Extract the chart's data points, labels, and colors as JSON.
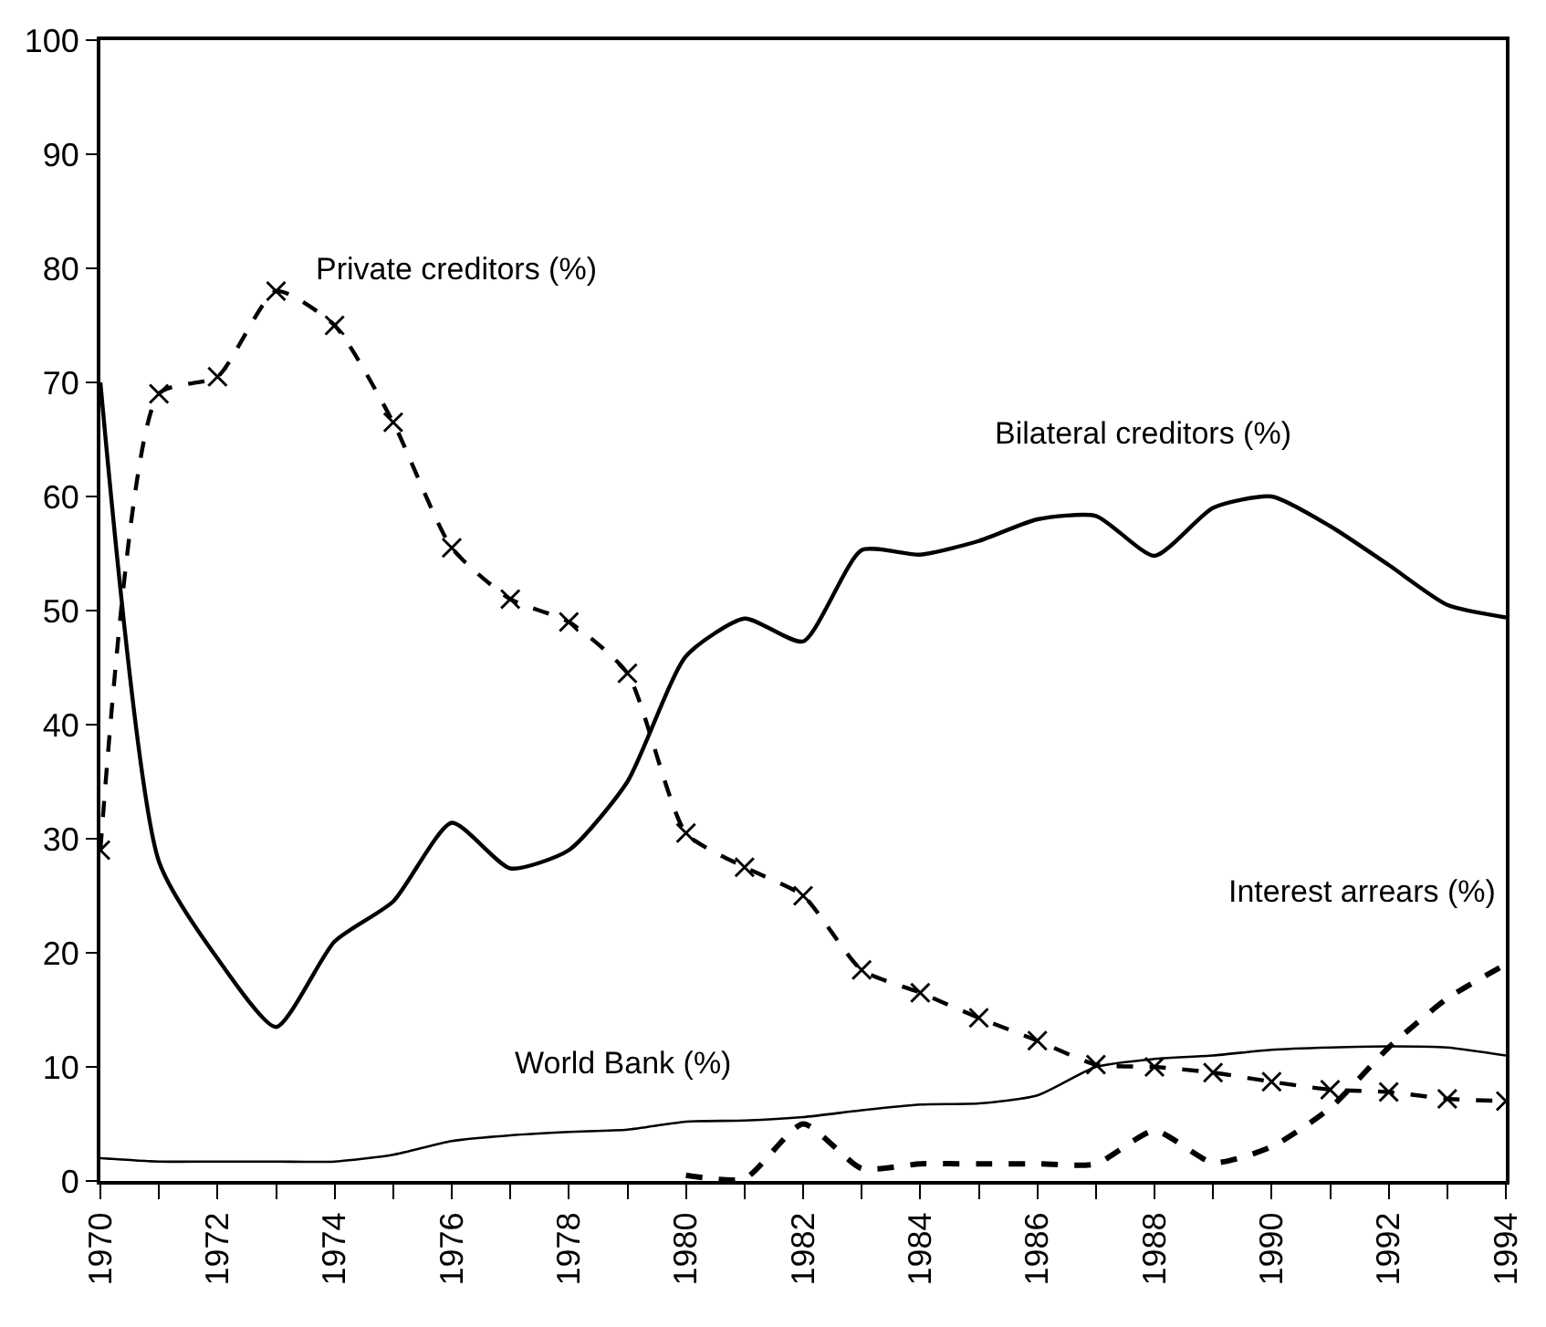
{
  "chart_data": {
    "type": "line",
    "x": [
      1970,
      1971,
      1972,
      1973,
      1974,
      1975,
      1976,
      1977,
      1978,
      1979,
      1980,
      1981,
      1982,
      1983,
      1984,
      1985,
      1986,
      1987,
      1988,
      1989,
      1990,
      1991,
      1992,
      1993,
      1994
    ],
    "series": [
      {
        "name": "Private creditors (%)",
        "color": "#000000",
        "line_style": "dashed",
        "marker": "cross",
        "values": [
          29,
          69,
          70.5,
          78,
          75,
          66.5,
          55.5,
          51,
          49,
          44.5,
          30.5,
          27.5,
          25,
          18.5,
          16.5,
          14.3,
          12.3,
          10.2,
          10,
          9.5,
          8.7,
          8,
          7.8,
          7.2,
          7
        ]
      },
      {
        "name": "Bilateral creditors (%)",
        "color": "#000000",
        "line_style": "solid",
        "marker": "none",
        "values": [
          70,
          28,
          19.5,
          13.5,
          21,
          24.5,
          31.4,
          27.4,
          29,
          35,
          46,
          49.3,
          47.3,
          55.3,
          54.9,
          56.1,
          58,
          58.3,
          54.8,
          59,
          60,
          57.4,
          54,
          50.5,
          49.4
        ]
      },
      {
        "name": "World Bank (%)",
        "color": "#000000",
        "line_style": "solid",
        "marker": "none",
        "values": [
          2,
          1.7,
          1.7,
          1.7,
          1.7,
          2.3,
          3.5,
          4,
          4.3,
          4.5,
          5.2,
          5.3,
          5.6,
          6.2,
          6.7,
          6.8,
          7.5,
          10,
          10.7,
          11,
          11.5,
          11.7,
          11.8,
          11.7,
          11
        ]
      },
      {
        "name": "Interest arrears (%)",
        "color": "#000000",
        "line_style": "dashed",
        "marker": "none",
        "values": [
          null,
          null,
          null,
          null,
          null,
          null,
          null,
          null,
          null,
          null,
          0.5,
          0.2,
          5,
          1.1,
          1.5,
          1.5,
          1.5,
          1.5,
          4.4,
          1.6,
          3,
          6.4,
          11.7,
          16,
          19
        ]
      }
    ],
    "xlim": [
      1970,
      1994
    ],
    "xticks": [
      1970,
      {
        "value": 1971,
        "label": null
      },
      1972,
      {
        "value": 1973,
        "label": null
      },
      1974,
      {
        "value": 1975,
        "label": null
      },
      1976,
      {
        "value": 1977,
        "label": null
      },
      1978,
      {
        "value": 1979,
        "label": null
      },
      1980,
      {
        "value": 1981,
        "label": null
      },
      1982,
      {
        "value": 1983,
        "label": null
      },
      1984,
      {
        "value": 1985,
        "label": null
      },
      1986,
      {
        "value": 1987,
        "label": null
      },
      1988,
      {
        "value": 1989,
        "label": null
      },
      1990,
      {
        "value": 1991,
        "label": null
      },
      1992,
      {
        "value": 1993,
        "label": null
      },
      1994
    ],
    "ylim": [
      0,
      100
    ],
    "yticks": [
      0,
      10,
      20,
      30,
      40,
      50,
      60,
      70,
      80,
      90,
      100
    ]
  }
}
